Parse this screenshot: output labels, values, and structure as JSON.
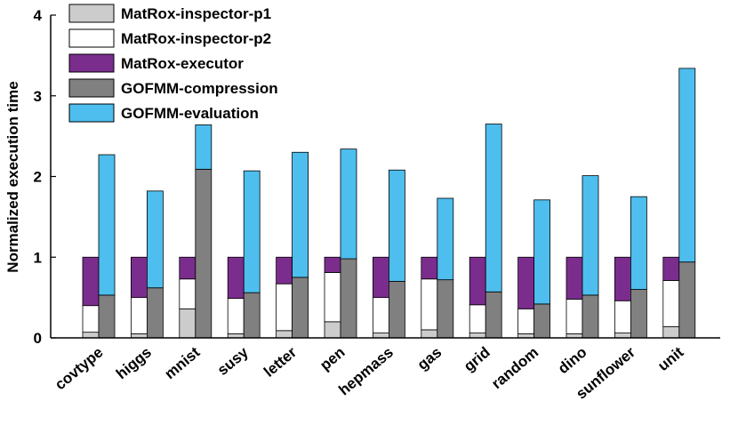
{
  "chart_data": {
    "type": "bar",
    "title": "",
    "xlabel": "",
    "ylabel": "Normalized execution time",
    "ylim": [
      0,
      4
    ],
    "yticks": [
      0,
      1,
      2,
      3,
      4
    ],
    "grid": false,
    "legend_position": "top-left",
    "categories": [
      "covtype",
      "higgs",
      "mnist",
      "susy",
      "letter",
      "pen",
      "hepmass",
      "gas",
      "grid",
      "random",
      "dino",
      "sunflower",
      "unit"
    ],
    "groups": [
      {
        "name": "MatRox",
        "stacked": true,
        "series": [
          {
            "name": "MatRox-inspector-p1",
            "color": "#cccccc",
            "values": [
              0.07,
              0.05,
              0.36,
              0.05,
              0.09,
              0.2,
              0.06,
              0.1,
              0.06,
              0.05,
              0.05,
              0.06,
              0.14
            ]
          },
          {
            "name": "MatRox-inspector-p2",
            "color": "#ffffff",
            "values": [
              0.33,
              0.45,
              0.37,
              0.44,
              0.58,
              0.61,
              0.44,
              0.63,
              0.35,
              0.31,
              0.43,
              0.4,
              0.57
            ]
          },
          {
            "name": "MatRox-executor",
            "color": "#7b2d8e",
            "values": [
              0.6,
              0.5,
              0.27,
              0.51,
              0.33,
              0.19,
              0.5,
              0.27,
              0.59,
              0.64,
              0.52,
              0.54,
              0.29
            ]
          }
        ]
      },
      {
        "name": "GOFMM",
        "stacked": true,
        "series": [
          {
            "name": "GOFMM-compression",
            "color": "#808080",
            "values": [
              0.53,
              0.62,
              2.09,
              0.56,
              0.75,
              0.98,
              0.7,
              0.72,
              0.57,
              0.42,
              0.53,
              0.6,
              0.94
            ]
          },
          {
            "name": "GOFMM-evaluation",
            "color": "#4dbeee",
            "values": [
              1.74,
              1.2,
              0.55,
              1.51,
              1.55,
              1.36,
              1.38,
              1.01,
              2.08,
              1.29,
              1.48,
              1.15,
              2.4
            ]
          }
        ]
      }
    ]
  }
}
